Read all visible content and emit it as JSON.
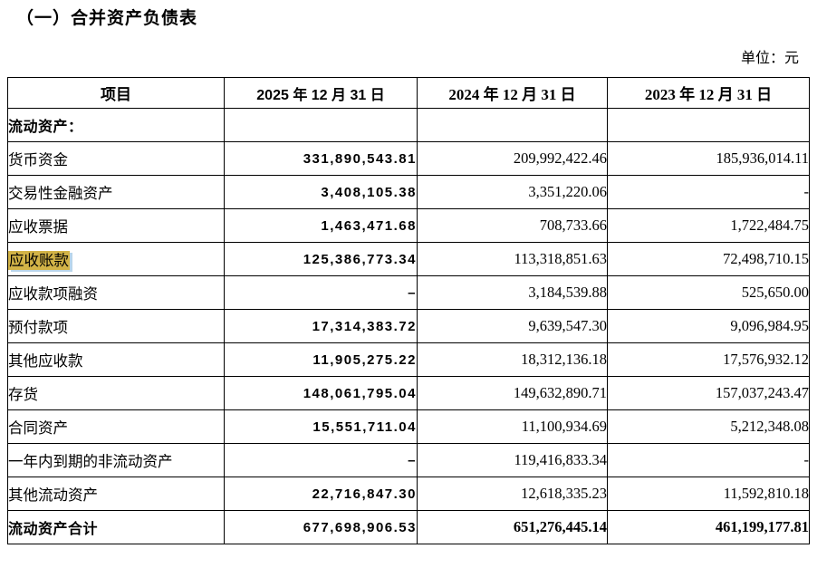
{
  "page": {
    "title": "（一）合并资产负债表",
    "unit_label": "单位：元"
  },
  "table": {
    "highlight_color": "#d2b347",
    "columns": [
      "项目",
      "2025 年 12 月 31 日",
      "2024 年 12 月 31 日",
      "2023 年 12 月 31 日"
    ],
    "rows": [
      {
        "label": "流动资产：",
        "label_bold": true,
        "v2025": "",
        "v2024": "",
        "v2023": ""
      },
      {
        "label": "货币资金",
        "v2025": "331,890,543.81",
        "v2024": "209,992,422.46",
        "v2023": "185,936,014.11"
      },
      {
        "label": "交易性金融资产",
        "v2025": "3,408,105.38",
        "v2024": "3,351,220.06",
        "v2023": "-"
      },
      {
        "label": "应收票据",
        "v2025": "1,463,471.68",
        "v2024": "708,733.66",
        "v2023": "1,722,484.75"
      },
      {
        "label": "应收账款",
        "highlight": true,
        "v2025": "125,386,773.34",
        "v2024": "113,318,851.63",
        "v2023": "72,498,710.15"
      },
      {
        "label": "应收款项融资",
        "v2025": "–",
        "v2024": "3,184,539.88",
        "v2023": "525,650.00"
      },
      {
        "label": "预付款项",
        "v2025": "17,314,383.72",
        "v2024": "9,639,547.30",
        "v2023": "9,096,984.95"
      },
      {
        "label": "其他应收款",
        "v2025": "11,905,275.22",
        "v2024": "18,312,136.18",
        "v2023": "17,576,932.12"
      },
      {
        "label": "存货",
        "v2025": "148,061,795.04",
        "v2024": "149,632,890.71",
        "v2023": "157,037,243.47"
      },
      {
        "label": "合同资产",
        "v2025": "15,551,711.04",
        "v2024": "11,100,934.69",
        "v2023": "5,212,348.08"
      },
      {
        "label": "一年内到期的非流动资产",
        "v2025": "–",
        "v2024": "119,416,833.34",
        "v2023": "-"
      },
      {
        "label": "其他流动资产",
        "v2025": "22,716,847.30",
        "v2024": "12,618,335.23",
        "v2023": "11,592,810.18"
      },
      {
        "label": "流动资产合计",
        "label_bold": true,
        "values_bold": true,
        "v2025": "677,698,906.53",
        "v2024": "651,276,445.14",
        "v2023": "461,199,177.81"
      }
    ]
  }
}
